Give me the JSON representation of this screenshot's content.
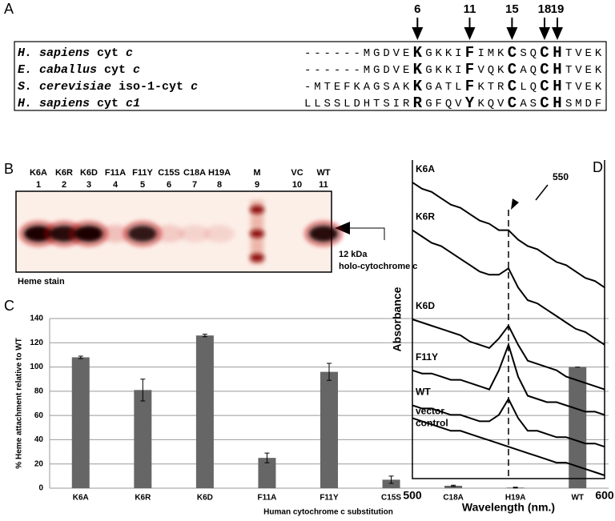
{
  "panel_a": {
    "panel_label": "A",
    "positions": [
      6,
      11,
      15,
      18,
      19
    ],
    "rows": [
      {
        "species": "H. sapiens cyt c",
        "sequence": "------MGDVEKGKKIFIMKCSQCHTVEK"
      },
      {
        "species": "E. caballus cyt c",
        "sequence": "------MGDVEKGKKIFVQKCAQCHTVEK"
      },
      {
        "species": "S. cerevisiae iso-1-cyt c",
        "sequence": "-MTEFKAGSAKKGATLFKTRCLQCHTVEK"
      },
      {
        "species": "H. sapiens cyt c1",
        "sequence": "LLSSLDHTSIRRGFQVYKQVCASCHSMDF"
      }
    ]
  },
  "panel_b": {
    "panel_label": "B",
    "lanes": [
      {
        "name": "K6A",
        "number": 1
      },
      {
        "name": "K6R",
        "number": 2
      },
      {
        "name": "K6D",
        "number": 3
      },
      {
        "name": "F11A",
        "number": 4
      },
      {
        "name": "F11Y",
        "number": 5
      },
      {
        "name": "C15S",
        "number": 6
      },
      {
        "name": "C18A",
        "number": 7
      },
      {
        "name": "H19A",
        "number": 8
      },
      {
        "name": "M",
        "number": 9
      },
      {
        "name": "VC",
        "number": 10
      },
      {
        "name": "WT",
        "number": 11
      }
    ],
    "stain_label": "Heme stain",
    "marker_size": "12 kDa",
    "marker_name": "holo-cytochrome c"
  },
  "chart_data": [
    {
      "type": "bar",
      "panel_label": "C",
      "x_label": "Human cytochrome c substitution",
      "y_label": "% Heme attachment relative to WT",
      "categories": [
        "K6A",
        "K6R",
        "K6D",
        "F11A",
        "F11Y",
        "C15S",
        "C18A",
        "H19A",
        "WT"
      ],
      "values": [
        108,
        81,
        126,
        25,
        96,
        7,
        2,
        0.5,
        100
      ],
      "errors": [
        1,
        9,
        1,
        4,
        7,
        3,
        0.5,
        0.3,
        0
      ],
      "color": "#666666",
      "ylim": [
        0,
        140
      ],
      "yticks": [
        0,
        20,
        40,
        60,
        80,
        100,
        120,
        140
      ],
      "grid": true
    },
    {
      "type": "line",
      "panel_label": "D",
      "x_label": "Wavelength (nm.)",
      "y_label": "Absorbance",
      "annotation": "550",
      "x": [
        500,
        505,
        510,
        515,
        520,
        525,
        530,
        535,
        540,
        545,
        550,
        555,
        560,
        565,
        570,
        575,
        580,
        585,
        590,
        595,
        600
      ],
      "xlim": [
        500,
        600
      ],
      "xticks": [
        500,
        600
      ],
      "ylim": [
        0,
        10
      ],
      "series": [
        {
          "name": "K6A",
          "color": "#000000",
          "values": [
            9.3,
            9.1,
            9.0,
            8.8,
            8.6,
            8.5,
            8.3,
            8.1,
            8.0,
            7.8,
            7.8,
            7.5,
            7.3,
            7.2,
            7.0,
            6.8,
            6.7,
            6.5,
            6.3,
            6.2,
            6.0
          ]
        },
        {
          "name": "K6R",
          "color": "#000000",
          "values": [
            7.8,
            7.6,
            7.4,
            7.3,
            7.1,
            6.9,
            6.7,
            6.5,
            6.4,
            6.4,
            6.6,
            6.0,
            5.6,
            5.5,
            5.3,
            5.1,
            4.9,
            4.7,
            4.6,
            4.4,
            4.2
          ]
        },
        {
          "name": "K6D",
          "color": "#000000",
          "values": [
            5.0,
            4.9,
            4.8,
            4.7,
            4.6,
            4.5,
            4.3,
            4.2,
            4.1,
            4.4,
            4.8,
            4.2,
            3.7,
            3.6,
            3.5,
            3.4,
            3.2,
            3.1,
            3.0,
            2.9,
            2.8
          ]
        },
        {
          "name": "F11Y",
          "color": "#000000",
          "values": [
            3.4,
            3.3,
            3.3,
            3.2,
            3.1,
            3.1,
            3.0,
            2.9,
            2.8,
            3.4,
            4.2,
            3.2,
            2.6,
            2.5,
            2.4,
            2.4,
            2.3,
            2.2,
            2.1,
            2.1,
            2.0
          ]
        },
        {
          "name": "WT",
          "color": "#000000",
          "values": [
            2.3,
            2.2,
            2.2,
            2.1,
            2.0,
            2.0,
            1.9,
            1.8,
            1.8,
            2.0,
            2.5,
            1.9,
            1.5,
            1.5,
            1.4,
            1.3,
            1.3,
            1.2,
            1.1,
            1.1,
            1.0
          ]
        },
        {
          "name": "vector control",
          "color": "#000000",
          "values": [
            1.9,
            1.8,
            1.7,
            1.6,
            1.5,
            1.5,
            1.4,
            1.3,
            1.2,
            1.1,
            1.0,
            0.9,
            0.8,
            0.7,
            0.6,
            0.5,
            0.5,
            0.4,
            0.3,
            0.2,
            0.1
          ]
        }
      ]
    }
  ]
}
